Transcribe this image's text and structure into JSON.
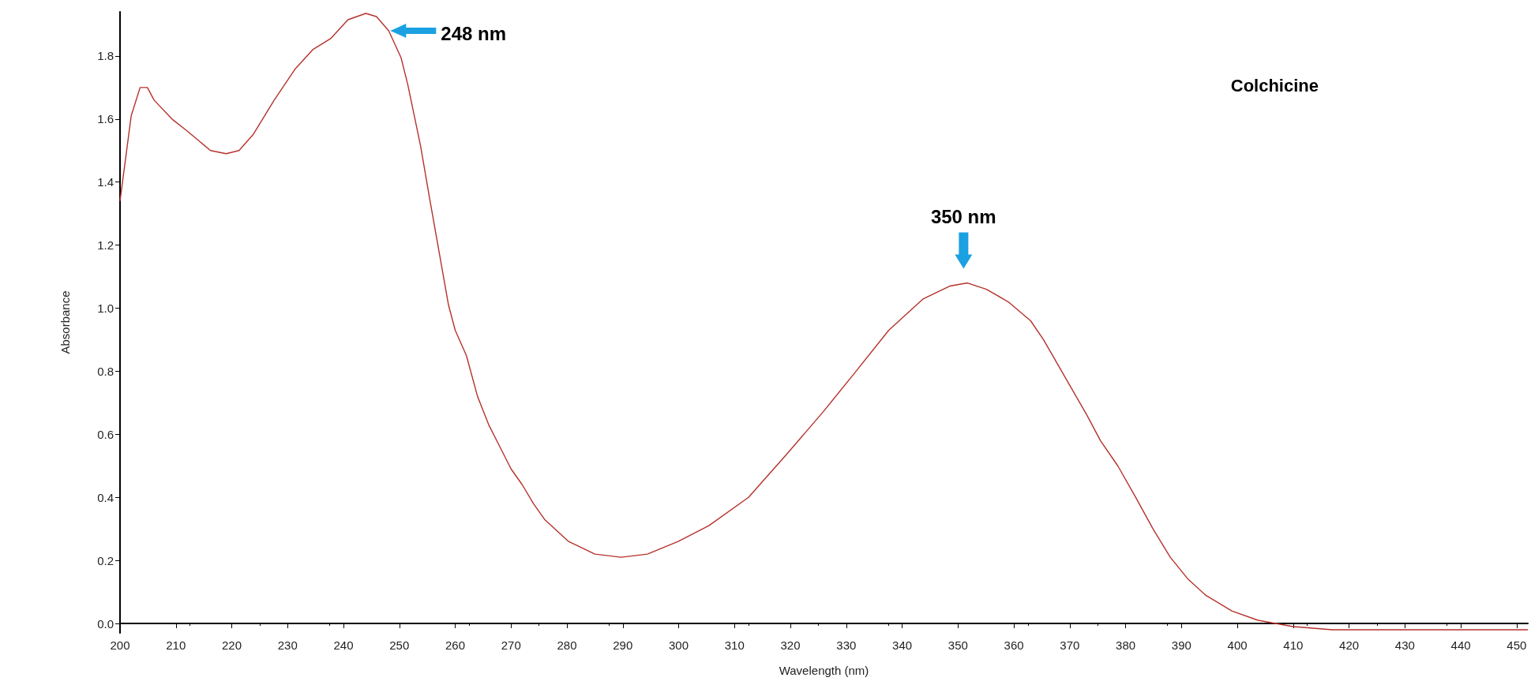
{
  "chart_data": {
    "type": "line",
    "title": "Colchicine",
    "xlabel": "Wavelength (nm)",
    "ylabel": "Absorbance",
    "x": [
      200,
      202,
      203.6,
      204.9,
      206.1,
      209.3,
      211.8,
      216.2,
      219,
      221.3,
      223.8,
      227.6,
      231.4,
      234.5,
      237.7,
      240.8,
      244,
      245.9,
      248.1,
      250.3,
      251.5,
      253.8,
      255.3,
      256.9,
      258.8,
      260,
      262,
      264,
      266,
      268,
      270,
      272,
      274,
      276,
      280.3,
      285,
      289.7,
      294.4,
      299.9,
      305.4,
      312.5,
      319.5,
      325.8,
      331.3,
      337.6,
      343.8,
      348.5,
      351.7,
      355.1,
      359,
      363,
      365.3,
      369.2,
      373.1,
      375.5,
      378.6,
      381.8,
      384.9,
      388,
      391.2,
      394.3,
      399,
      403.7,
      410,
      417,
      430,
      452
    ],
    "series": [
      {
        "color": "#b5312b",
        "values": [
          1.34,
          1.61,
          1.7,
          1.7,
          1.66,
          1.6,
          1.565,
          1.5,
          1.49,
          1.5,
          1.55,
          1.66,
          1.76,
          1.82,
          1.855,
          1.915,
          1.935,
          1.925,
          1.88,
          1.795,
          1.71,
          1.515,
          1.36,
          1.2,
          1.01,
          0.93,
          0.85,
          0.72,
          0.63,
          0.56,
          0.49,
          0.44,
          0.38,
          0.33,
          0.26,
          0.22,
          0.21,
          0.22,
          0.26,
          0.31,
          0.4,
          0.54,
          0.67,
          0.79,
          0.93,
          1.03,
          1.07,
          1.08,
          1.06,
          1.02,
          0.96,
          0.9,
          0.78,
          0.66,
          0.58,
          0.5,
          0.4,
          0.3,
          0.21,
          0.14,
          0.09,
          0.04,
          0.01,
          -0.01,
          -0.02,
          -0.02,
          -0.02
        ]
      }
    ],
    "xlim": [
      200,
      452
    ],
    "xticks": [
      200,
      210,
      220,
      230,
      240,
      250,
      260,
      270,
      280,
      290,
      300,
      310,
      320,
      330,
      340,
      350,
      360,
      370,
      380,
      390,
      400,
      410,
      420,
      430,
      440,
      450
    ],
    "ylim": [
      -0.03,
      1.94
    ],
    "yticks": [
      {
        "value": 0,
        "label": "0.0"
      },
      0.2,
      0.4,
      0.6,
      0.8,
      {
        "value": 1,
        "label": "1.0"
      },
      1.2,
      1.4,
      1.6,
      1.8
    ],
    "annotations": [
      {
        "text": "248 nm",
        "x": 248.1,
        "y": 1.88
      },
      {
        "text": "350 nm",
        "x": 351,
        "y": 1.08
      }
    ],
    "grid": false,
    "marker": "none",
    "line_style": "solid"
  }
}
